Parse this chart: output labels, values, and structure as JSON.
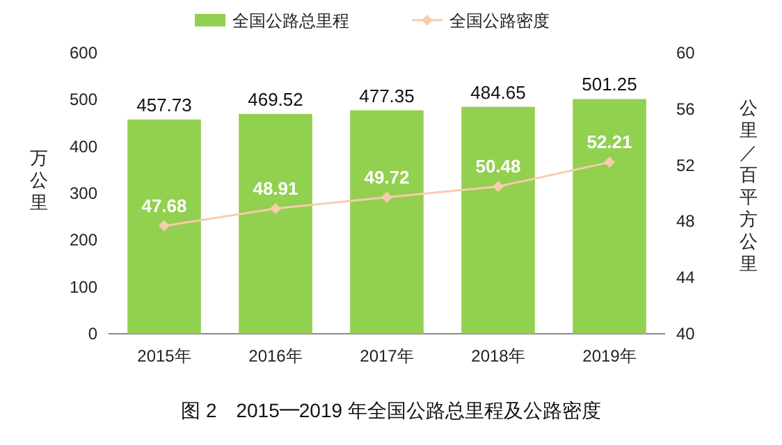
{
  "chart_data": {
    "type": "bar",
    "categories": [
      "2015年",
      "2016年",
      "2017年",
      "2018年",
      "2019年"
    ],
    "series": [
      {
        "name": "全国公路总里程",
        "color": "#92d050",
        "values": [
          457.73,
          469.52,
          477.35,
          484.65,
          501.25
        ]
      },
      {
        "name": "全国公路密度",
        "type": "line",
        "axis": "y2",
        "color": "#f8cbad",
        "values": [
          47.68,
          48.91,
          49.72,
          50.48,
          52.21
        ]
      }
    ],
    "ylim": [
      0,
      600
    ],
    "yticks": [
      0,
      100,
      200,
      300,
      400,
      500,
      600
    ],
    "y2lim": [
      40,
      60
    ],
    "y2ticks": [
      40,
      44,
      48,
      52,
      56,
      60
    ],
    "ylabel": "万公里",
    "y2label": "公里／百平方公里",
    "annotations": [
      "图 2　2015━2019 年全国公路总里程及公路密度"
    ],
    "data_labels": true,
    "legend": "top",
    "grid": false,
    "marker": "diamond",
    "line_style": "solid"
  }
}
